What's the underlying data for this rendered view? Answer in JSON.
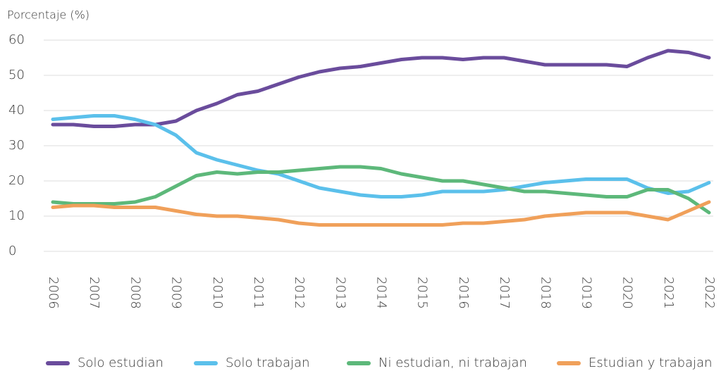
{
  "chart_data": {
    "type": "line",
    "ylabel": "Porcentaje (%)",
    "x": [
      2006,
      2006.5,
      2007,
      2007.5,
      2008,
      2008.5,
      2009,
      2009.5,
      2010,
      2010.5,
      2011,
      2011.5,
      2012,
      2012.5,
      2013,
      2013.5,
      2014,
      2014.5,
      2015,
      2015.5,
      2016,
      2016.5,
      2017,
      2017.5,
      2018,
      2018.5,
      2019,
      2019.5,
      2020,
      2020.5,
      2021,
      2021.5,
      2022
    ],
    "series": [
      {
        "name": "Solo estudian",
        "color": "#6a4c9c",
        "values": [
          36,
          36,
          35.5,
          35.5,
          36,
          36,
          37,
          40,
          42,
          44.5,
          45.5,
          47.5,
          49.5,
          51,
          52,
          52.5,
          53.5,
          54.5,
          55,
          55,
          54.5,
          55,
          55,
          54,
          53,
          53,
          53,
          53,
          52.5,
          55,
          57,
          56.5,
          55
        ]
      },
      {
        "name": "Solo trabajan",
        "color": "#5bc0eb",
        "values": [
          37.5,
          38,
          38.5,
          38.5,
          37.5,
          36,
          33,
          28,
          26,
          24.5,
          23,
          22,
          20,
          18,
          17,
          16,
          15.5,
          15.5,
          16,
          17,
          17,
          17,
          17.5,
          18.5,
          19.5,
          20,
          20.5,
          20.5,
          20.5,
          18,
          16.5,
          17,
          19.5
        ]
      },
      {
        "name": "Ni estudian, ni trabajan",
        "color": "#5db87a",
        "values": [
          14,
          13.5,
          13.5,
          13.5,
          14,
          15.5,
          18.5,
          21.5,
          22.5,
          22,
          22.5,
          22.5,
          23,
          23.5,
          24,
          24,
          23.5,
          22,
          21,
          20,
          20,
          19,
          18,
          17,
          17,
          16.5,
          16,
          15.5,
          15.5,
          17.5,
          17.5,
          15,
          11
        ]
      },
      {
        "name": "Estudian y trabajan",
        "color": "#f0a05a",
        "values": [
          12.5,
          13,
          13,
          12.5,
          12.5,
          12.5,
          11.5,
          10.5,
          10,
          10,
          9.5,
          9,
          8,
          7.5,
          7.5,
          7.5,
          7.5,
          7.5,
          7.5,
          7.5,
          8,
          8,
          8.5,
          9,
          10,
          10.5,
          11,
          11,
          11,
          10,
          9,
          11.5,
          14
        ]
      }
    ],
    "xlim": [
      2006,
      2022
    ],
    "xticks": [
      2006,
      2007,
      2008,
      2009,
      2010,
      2011,
      2012,
      2013,
      2014,
      2015,
      2016,
      2017,
      2018,
      2019,
      2020,
      2021,
      2022
    ],
    "ylim": [
      0,
      60
    ],
    "yticks": [
      0,
      10,
      20,
      30,
      40,
      50,
      60
    ],
    "grid": true,
    "legend": "bottom"
  }
}
